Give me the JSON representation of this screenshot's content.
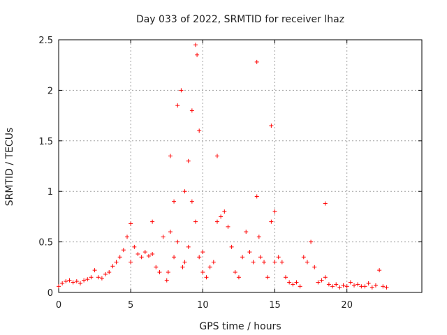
{
  "chart_data": {
    "type": "scatter",
    "title": "Day 033 of 2022, SRMTID for receiver lhaz",
    "xlabel": "GPS time / hours",
    "ylabel": "SRMTID / TECUs",
    "xlim": [
      0,
      25.2
    ],
    "ylim": [
      0,
      2.5
    ],
    "x_ticks": [
      0,
      5,
      10,
      15,
      20
    ],
    "x_tick_labels": [
      "0",
      "5",
      "10",
      "15",
      "20"
    ],
    "y_ticks": [
      0,
      0.5,
      1,
      1.5,
      2,
      2.5
    ],
    "y_tick_labels": [
      "0",
      "0.5",
      "1",
      "1.5",
      "2",
      "2.5"
    ],
    "grid": true,
    "marker": "+",
    "series": [
      {
        "name": "SRMTID",
        "color": "#ff0000",
        "x": [
          0.0,
          0.25,
          0.5,
          0.75,
          1.0,
          1.25,
          1.5,
          1.75,
          2.0,
          2.25,
          2.5,
          2.75,
          3.0,
          3.25,
          3.5,
          3.75,
          4.0,
          4.25,
          4.5,
          4.75,
          5.0,
          5.0,
          5.25,
          5.5,
          5.75,
          6.0,
          6.25,
          6.5,
          6.5,
          6.75,
          7.0,
          7.25,
          7.5,
          7.6,
          7.75,
          7.75,
          8.0,
          8.0,
          8.25,
          8.25,
          8.5,
          8.6,
          8.75,
          8.75,
          9.0,
          9.0,
          9.25,
          9.25,
          9.5,
          9.5,
          9.6,
          9.75,
          9.75,
          10.0,
          10.0,
          10.25,
          10.5,
          10.75,
          11.0,
          11.0,
          11.25,
          11.5,
          11.75,
          12.0,
          12.25,
          12.5,
          12.75,
          13.0,
          13.25,
          13.5,
          13.75,
          13.75,
          13.9,
          14.0,
          14.25,
          14.5,
          14.75,
          14.75,
          15.0,
          15.0,
          15.25,
          15.5,
          15.75,
          16.0,
          16.25,
          16.5,
          16.75,
          17.0,
          17.25,
          17.5,
          17.75,
          18.0,
          18.25,
          18.5,
          18.5,
          18.75,
          19.0,
          19.25,
          19.5,
          19.75,
          20.0,
          20.25,
          20.5,
          20.75,
          21.0,
          21.25,
          21.5,
          21.75,
          22.0,
          22.25,
          22.5,
          22.75
        ],
        "y": [
          0.06,
          0.09,
          0.11,
          0.12,
          0.1,
          0.11,
          0.09,
          0.12,
          0.13,
          0.15,
          0.22,
          0.15,
          0.14,
          0.18,
          0.2,
          0.26,
          0.3,
          0.35,
          0.42,
          0.55,
          0.68,
          0.3,
          0.45,
          0.38,
          0.35,
          0.4,
          0.36,
          0.38,
          0.7,
          0.25,
          0.2,
          0.55,
          0.12,
          0.2,
          1.35,
          0.6,
          0.9,
          0.35,
          1.85,
          0.5,
          2.0,
          0.25,
          1.0,
          0.3,
          1.3,
          0.45,
          0.9,
          1.8,
          2.45,
          0.7,
          2.35,
          1.6,
          0.35,
          0.4,
          0.2,
          0.15,
          0.25,
          0.3,
          1.35,
          0.7,
          0.75,
          0.8,
          0.65,
          0.45,
          0.2,
          0.15,
          0.35,
          0.6,
          0.4,
          0.3,
          2.28,
          0.95,
          0.55,
          0.35,
          0.3,
          0.15,
          1.65,
          0.7,
          0.8,
          0.3,
          0.35,
          0.3,
          0.15,
          0.1,
          0.08,
          0.1,
          0.06,
          0.35,
          0.3,
          0.5,
          0.25,
          0.1,
          0.12,
          0.88,
          0.15,
          0.08,
          0.06,
          0.08,
          0.05,
          0.07,
          0.06,
          0.1,
          0.07,
          0.08,
          0.06,
          0.06,
          0.09,
          0.05,
          0.07,
          0.22,
          0.06,
          0.05
        ]
      }
    ]
  }
}
